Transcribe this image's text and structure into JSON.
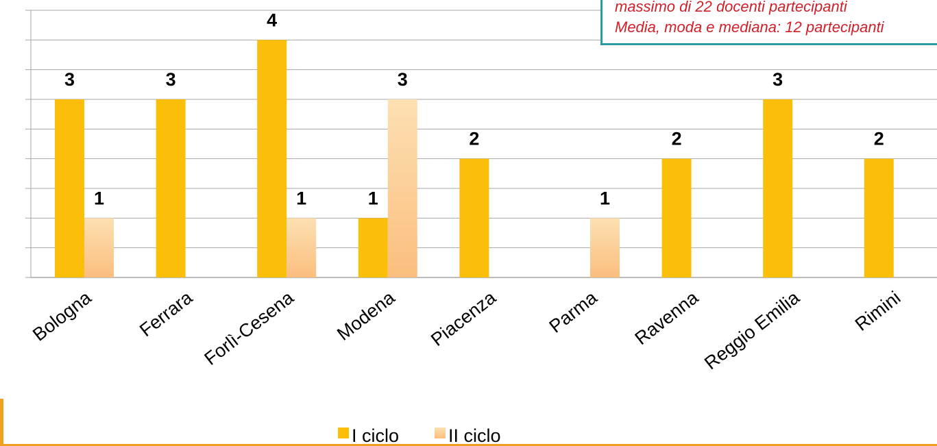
{
  "note": {
    "lines": [
      "massimo di 22 docenti partecipanti",
      "Media, moda e mediana: 12 partecipanti"
    ]
  },
  "colors": {
    "series1": "#fbbf0a",
    "series2_top": "#fde0b2",
    "series2_bottom": "#fbbe7e",
    "grid": "#a6a6a6",
    "note_border": "#2a9aa4",
    "note_text": "#d0202a",
    "accent": "#f0a020"
  },
  "chart_data": {
    "type": "bar",
    "categories": [
      "Bologna",
      "Ferrara",
      "Forlì-Cesena",
      "Modena",
      "Piacenza",
      "Parma",
      "Ravenna",
      "Reggio Emilia",
      "Rimini"
    ],
    "series": [
      {
        "name": "I ciclo",
        "values": [
          3,
          3,
          4,
          1,
          2,
          0,
          2,
          3,
          2
        ]
      },
      {
        "name": "II ciclo",
        "values": [
          1,
          0,
          1,
          3,
          0,
          1,
          0,
          0,
          0
        ]
      }
    ],
    "title": "",
    "xlabel": "",
    "ylabel": "",
    "ylim": [
      0,
      4.5
    ],
    "grid": true,
    "legend": "bottom"
  }
}
